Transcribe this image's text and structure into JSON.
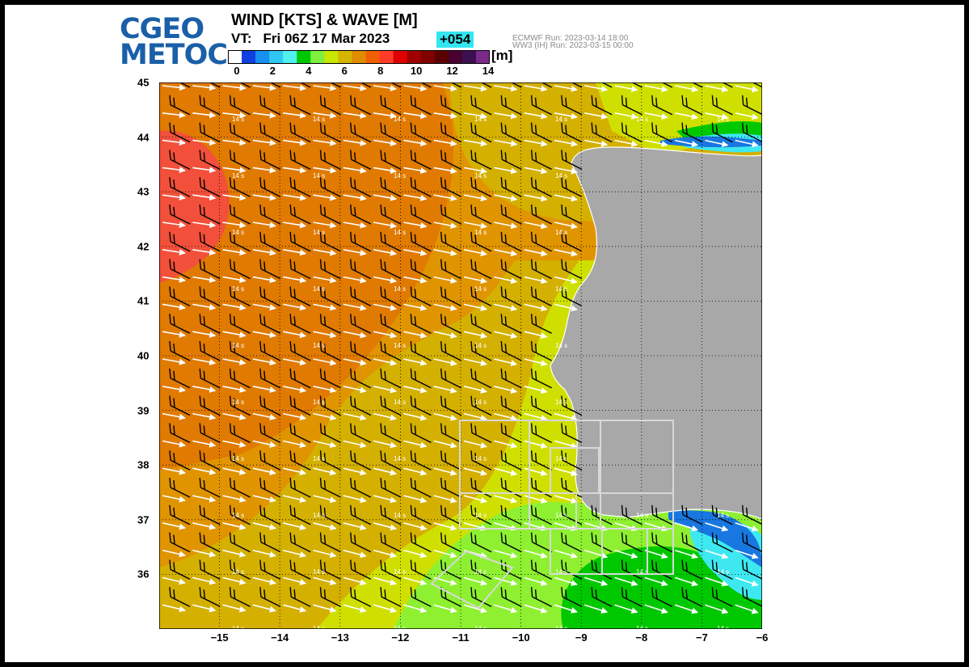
{
  "logo": {
    "line1": "CGEO",
    "line2": "METOC"
  },
  "title": "WIND [KTS] & WAVE [M]",
  "valid_time": {
    "label": "VT:",
    "value": "Fri 06Z 17 Mar 2023"
  },
  "forecast_hour": "+054",
  "run_info": {
    "line1": "ECMWF   Run: 2023-03-14 18:00",
    "line2": "WW3 (IH) Run: 2023-03-15 00:00"
  },
  "colorbar": {
    "unit": "[m]",
    "labels": [
      "0",
      "2",
      "4",
      "6",
      "8",
      "10",
      "12",
      "14"
    ],
    "colors": [
      "#ffffff",
      "#1040e0",
      "#1890f0",
      "#30c8f0",
      "#50f0f0",
      "#00c800",
      "#80f040",
      "#c8e600",
      "#d4b400",
      "#e08c00",
      "#f06000",
      "#ff3c28",
      "#e00000",
      "#a00000",
      "#800000",
      "#5a0000",
      "#4a0030",
      "#3c1050",
      "#7a2a8a"
    ]
  },
  "axes": {
    "lat_labels": [
      "45",
      "44",
      "43",
      "42",
      "41",
      "40",
      "39",
      "38",
      "37",
      "36"
    ],
    "lon_labels": [
      "−15",
      "−14",
      "−13",
      "−12",
      "−11",
      "−10",
      "−9",
      "−8",
      "−7",
      "−6"
    ]
  },
  "map": {
    "lon_range": [
      -16,
      -6
    ],
    "lat_range": [
      35,
      45
    ],
    "wind_direction": "westerly to north-westerly",
    "period_label": "14 s",
    "land_color": "#a8a8a8",
    "colors": {
      "red": "#f2503a",
      "deep_orange": "#e07a00",
      "orange": "#e09400",
      "gold": "#d4b000",
      "yellow": "#cfe000",
      "lime": "#8ef030",
      "green": "#00c800",
      "cyan": "#3ee8f0",
      "blue": "#1877e0"
    }
  }
}
